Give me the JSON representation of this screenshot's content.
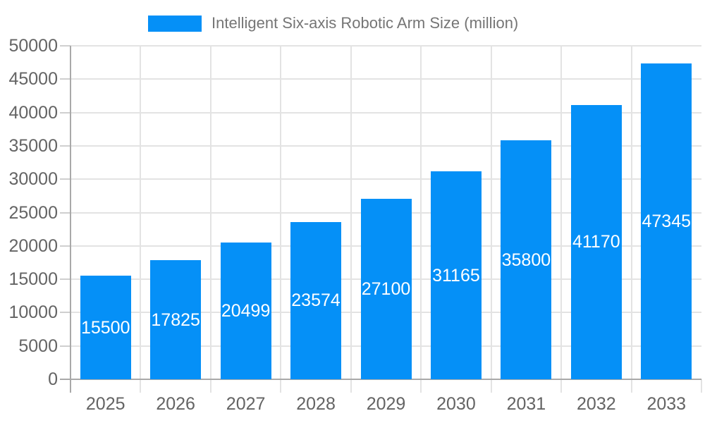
{
  "chart_data": {
    "type": "bar",
    "title": "",
    "legend": "Intelligent Six-axis Robotic Arm Size (million)",
    "legend_position": "top",
    "categories": [
      "2025",
      "2026",
      "2027",
      "2028",
      "2029",
      "2030",
      "2031",
      "2032",
      "2033"
    ],
    "values": [
      15500,
      17825,
      20499,
      23574,
      27100,
      31165,
      35800,
      41170,
      47345
    ],
    "value_labels": [
      "15500",
      "17825",
      "20499",
      "23574",
      "27100",
      "31165",
      "35800",
      "41170",
      "47345"
    ],
    "xlabel": "",
    "ylabel": "",
    "ylim": [
      0,
      50000
    ],
    "yticks": [
      0,
      5000,
      10000,
      15000,
      20000,
      25000,
      30000,
      35000,
      40000,
      45000,
      50000
    ],
    "ytick_labels": [
      "0",
      "5000",
      "10000",
      "15000",
      "20000",
      "25000",
      "30000",
      "35000",
      "40000",
      "45000",
      "50000"
    ],
    "grid": true,
    "colors": {
      "bar": "#0590f7",
      "grid": "#e3e3e3",
      "axis": "#a9a9a9",
      "tick": "#cfcfcf",
      "axis_label": "#646464",
      "legend_label": "#757575",
      "value_label": "#ffffff",
      "background": "#ffffff"
    }
  }
}
